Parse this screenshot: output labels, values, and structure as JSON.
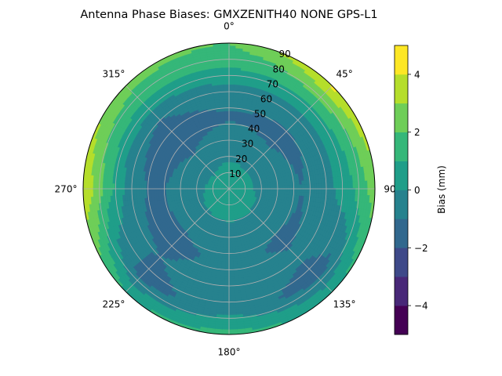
{
  "chart_data": {
    "type": "heatmap",
    "subtype": "polar-contour",
    "title": "Antenna Phase Biases: GMXZENITH40     NONE GPS-L1",
    "angular_ticks": [
      {
        "deg": 0,
        "label": "0°"
      },
      {
        "deg": 45,
        "label": "45°"
      },
      {
        "deg": 90,
        "label": "90°"
      },
      {
        "deg": 135,
        "label": "135°"
      },
      {
        "deg": 180,
        "label": "180°"
      },
      {
        "deg": 225,
        "label": "225°"
      },
      {
        "deg": 270,
        "label": "270°"
      },
      {
        "deg": 315,
        "label": "315°"
      }
    ],
    "radial_ticks": [
      {
        "value": 10,
        "label": "10"
      },
      {
        "value": 20,
        "label": "20"
      },
      {
        "value": 30,
        "label": "30"
      },
      {
        "value": 40,
        "label": "40"
      },
      {
        "value": 50,
        "label": "50"
      },
      {
        "value": 60,
        "label": "60"
      },
      {
        "value": 70,
        "label": "70"
      },
      {
        "value": 80,
        "label": "80"
      },
      {
        "value": 90,
        "label": "90"
      }
    ],
    "radial_range": [
      0,
      90
    ],
    "angular_direction": "clockwise",
    "zero_location": "top",
    "grid": true,
    "colorbar": {
      "label": "Bias (mm)",
      "range": [
        -5,
        5
      ],
      "ticks": [
        {
          "value": -4,
          "label": "−4"
        },
        {
          "value": -2,
          "label": "−2"
        },
        {
          "value": 0,
          "label": "0"
        },
        {
          "value": 2,
          "label": "2"
        },
        {
          "value": 4,
          "label": "4"
        }
      ],
      "levels": [
        {
          "from": -5,
          "to": -4,
          "color": "#440154"
        },
        {
          "from": -4,
          "to": -3,
          "color": "#482878"
        },
        {
          "from": -3,
          "to": -2,
          "color": "#3e4989"
        },
        {
          "from": -2,
          "to": -1,
          "color": "#31688e"
        },
        {
          "from": -1,
          "to": 0,
          "color": "#26828e"
        },
        {
          "from": 0,
          "to": 1,
          "color": "#1f9e89"
        },
        {
          "from": 1,
          "to": 2,
          "color": "#35b779"
        },
        {
          "from": 2,
          "to": 3,
          "color": "#6ece58"
        },
        {
          "from": 3,
          "to": 4,
          "color": "#b5de2b"
        },
        {
          "from": 4,
          "to": 5,
          "color": "#fde725"
        }
      ]
    },
    "field_samples": {
      "azimuths_deg": [
        0,
        45,
        90,
        135,
        180,
        225,
        270,
        315
      ],
      "zenith_deg": [
        0,
        15,
        30,
        45,
        60,
        75,
        90
      ],
      "bias_mm": [
        [
          0.5,
          0.1,
          -0.6,
          -1.1,
          -0.4,
          1.0,
          2.0
        ],
        [
          0.5,
          0.0,
          -0.8,
          -1.3,
          -0.6,
          1.5,
          4.2
        ],
        [
          0.5,
          0.0,
          -0.4,
          -1.0,
          -0.4,
          0.8,
          2.5
        ],
        [
          0.5,
          0.2,
          -0.6,
          -1.2,
          -0.8,
          -1.6,
          0.8
        ],
        [
          0.5,
          0.3,
          -0.5,
          -0.7,
          -0.4,
          -0.3,
          1.4
        ],
        [
          0.5,
          0.2,
          -0.7,
          -1.3,
          -1.0,
          -1.5,
          1.0
        ],
        [
          0.5,
          0.0,
          -0.7,
          -1.2,
          -0.7,
          1.6,
          4.0
        ],
        [
          0.5,
          -0.1,
          -1.0,
          -1.4,
          -1.0,
          1.0,
          2.5
        ]
      ]
    }
  }
}
